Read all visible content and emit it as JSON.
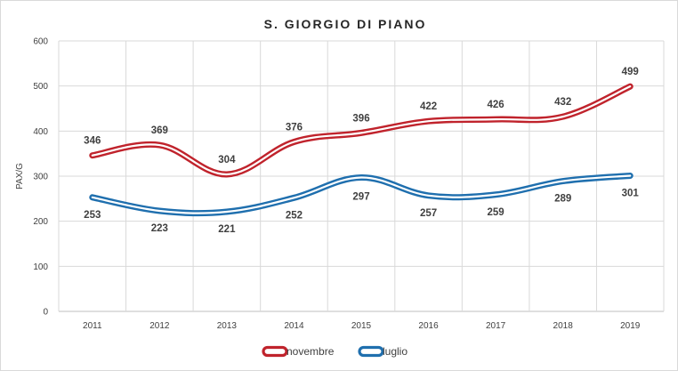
{
  "chart_data": {
    "type": "line",
    "title": "S. GIORGIO DI PIANO",
    "ylabel": "PAX/G",
    "xlabel": "",
    "ylim": [
      0,
      600
    ],
    "yticks": [
      0,
      100,
      200,
      300,
      400,
      500,
      600
    ],
    "categories": [
      "2011",
      "2012",
      "2013",
      "2014",
      "2015",
      "2016",
      "2017",
      "2018",
      "2019"
    ],
    "grid": true,
    "legend_position": "bottom",
    "series": [
      {
        "name": "novembre",
        "color": "#c0232c",
        "values": [
          346,
          369,
          304,
          376,
          396,
          422,
          426,
          432,
          499
        ]
      },
      {
        "name": "luglio",
        "color": "#1f6fae",
        "values": [
          253,
          223,
          221,
          252,
          297,
          257,
          259,
          289,
          301
        ]
      }
    ]
  }
}
